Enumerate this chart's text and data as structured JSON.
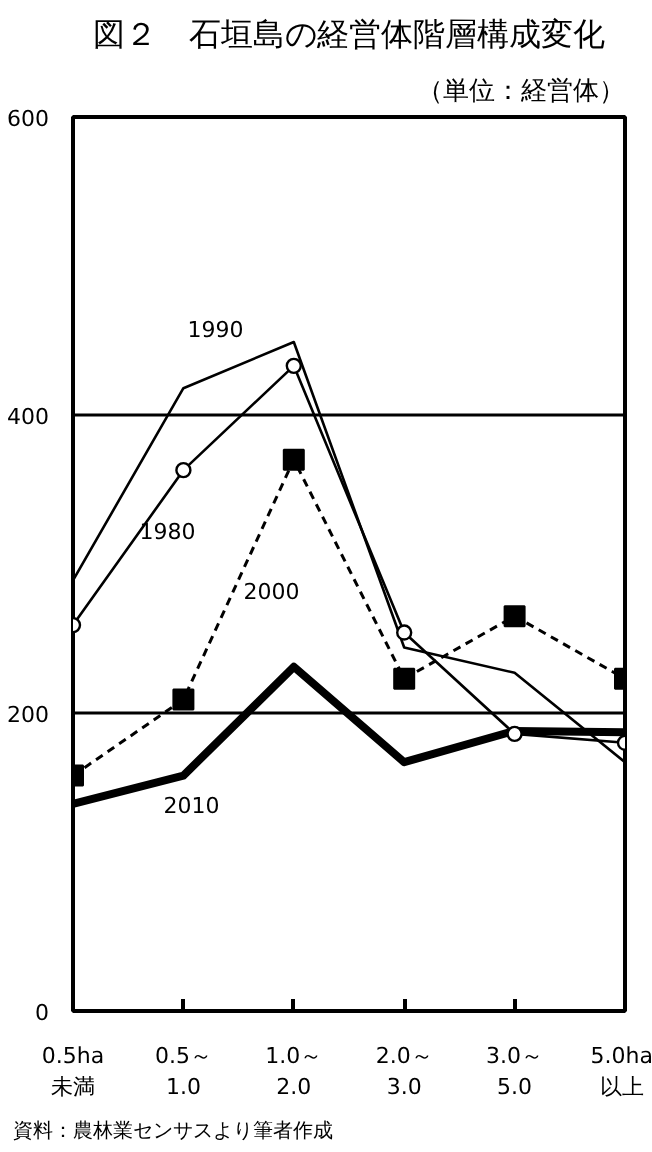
{
  "chart_data": {
    "type": "line",
    "title": "図２　石垣島の経営体階層構成変化",
    "subtitle": "（単位：経営体）",
    "categories": [
      "0.5ha\n未満",
      "0.5～\n1.0",
      "1.0～\n2.0",
      "2.0～\n3.0",
      "3.0～\n5.0",
      "5.0ha\n以上"
    ],
    "series": [
      {
        "name": "1990",
        "color": "#000000",
        "marker": "none",
        "line_style": "solid",
        "values": [
          289,
          418,
          449,
          244,
          227,
          167
        ]
      },
      {
        "name": "1980",
        "color": "#000000",
        "marker": "circle",
        "line_style": "solid",
        "values": [
          259,
          363,
          433,
          254,
          186,
          180
        ]
      },
      {
        "name": "2000",
        "color": "#000000",
        "marker": "square",
        "line_style": "dashed",
        "values": [
          158,
          209,
          370,
          223,
          265,
          223
        ]
      },
      {
        "name": "2010",
        "color": "#000000",
        "marker": "none",
        "line_style": "solid",
        "values": [
          139,
          158,
          231,
          167,
          188,
          187
        ]
      }
    ],
    "ylim": [
      0,
      600
    ],
    "yticks": [
      0,
      200,
      400,
      600
    ],
    "grid": "y",
    "annotations": [
      "資料：農林業センサスより筆者作成"
    ]
  }
}
